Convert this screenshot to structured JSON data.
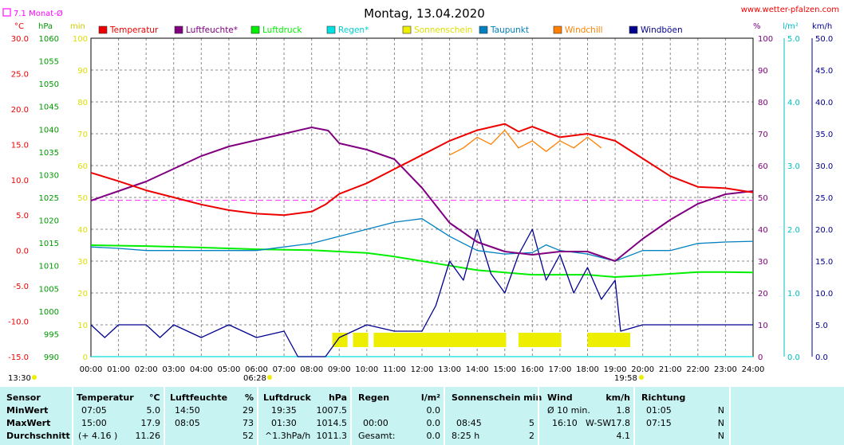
{
  "title": "Montag, 13.04.2020",
  "website": "www.wetter-pfalzen.com",
  "monthly_avg_label": "7.1 Monat-Ø",
  "units": {
    "temp": "°C",
    "pressure": "hPa",
    "sun": "min",
    "percent": "%",
    "rain": "l/m²",
    "wind": "km/h"
  },
  "sunrise": "06:28",
  "sunset": "19:58",
  "left_time": "13:30",
  "colors": {
    "temperature": "#ee0000",
    "humidity": "#800080",
    "pressure": "#00ee00",
    "rain": "#00e0e0",
    "sun": "#eeee00",
    "dewpoint": "#0080c0",
    "windchill": "#ff8000",
    "gusts": "#000090",
    "avg_line": "#ff40ff"
  },
  "chart_data": {
    "type": "line",
    "x_range": [
      "00:00",
      "24:00"
    ],
    "x_ticks": [
      "00:00",
      "01:00",
      "02:00",
      "03:00",
      "04:00",
      "05:00",
      "06:00",
      "07:00",
      "08:00",
      "09:00",
      "10:00",
      "11:00",
      "12:00",
      "13:00",
      "14:00",
      "15:00",
      "16:00",
      "17:00",
      "18:00",
      "19:00",
      "20:00",
      "21:00",
      "22:00",
      "23:00",
      "24:00"
    ],
    "axes": {
      "temperature": {
        "min": -15,
        "max": 30,
        "ticks": [
          "30.0",
          "25.0",
          "20.0",
          "15.0",
          "10.0",
          "5.0",
          "0.0",
          "-5.0",
          "-10.0",
          "-15.0"
        ]
      },
      "pressure": {
        "min": 990,
        "max": 1060,
        "ticks": [
          "1060",
          "1055",
          "1050",
          "1045",
          "1040",
          "1035",
          "1030",
          "1025",
          "1020",
          "1015",
          "1010",
          "1005",
          "1000",
          "995",
          "990"
        ]
      },
      "sunshine": {
        "min": 0,
        "max": 100,
        "ticks": [
          "100",
          "90",
          "80",
          "70",
          "60",
          "50",
          "40",
          "30",
          "20",
          "10",
          "0"
        ]
      },
      "humidity": {
        "min": 0,
        "max": 100,
        "ticks": [
          "100",
          "90",
          "80",
          "70",
          "60",
          "50",
          "40",
          "30",
          "20",
          "10",
          "0"
        ]
      },
      "rain": {
        "min": 0,
        "max": 5,
        "ticks": [
          "5.0",
          "4.0",
          "3.0",
          "2.0",
          "1.0",
          "0.0"
        ]
      },
      "wind": {
        "min": 0,
        "max": 50,
        "ticks": [
          "50.0",
          "45.0",
          "40.0",
          "35.0",
          "30.0",
          "25.0",
          "20.0",
          "15.0",
          "10.0",
          "5.0",
          "0.0"
        ]
      }
    },
    "legend": [
      "Temperatur",
      "Luftfeuchte*",
      "Luftdruck",
      "Regen*",
      "Sonnenschein",
      "Taupunkt",
      "Windchill",
      "Windböen"
    ],
    "monthly_avg_temp": 7.1,
    "series": [
      {
        "name": "Temperatur",
        "axis": "temperature",
        "x": [
          0,
          1,
          2,
          3,
          4,
          5,
          6,
          7,
          8,
          8.5,
          9,
          10,
          11,
          12,
          13,
          14,
          15,
          15.5,
          16,
          17,
          18,
          19,
          20,
          21,
          22,
          23,
          24
        ],
        "values": [
          11,
          9.8,
          8.5,
          7.5,
          6.5,
          5.7,
          5.2,
          5.0,
          5.5,
          6.5,
          8,
          9.5,
          11.5,
          13.5,
          15.5,
          17,
          17.9,
          16.8,
          17.5,
          16,
          16.5,
          15.5,
          13,
          10.5,
          9,
          8.8,
          8.2
        ]
      },
      {
        "name": "Luftfeuchte*",
        "axis": "humidity",
        "x": [
          0,
          1,
          2,
          3,
          4,
          5,
          6,
          7,
          7.5,
          8,
          8.6,
          9,
          10,
          11,
          12,
          13,
          14,
          15,
          16,
          17,
          18,
          19,
          20,
          21,
          22,
          23,
          24
        ],
        "values": [
          49,
          52,
          55,
          59,
          63,
          66,
          68,
          70,
          71,
          72,
          71,
          67,
          65,
          62,
          53,
          42,
          36,
          33,
          32,
          33,
          33,
          30,
          37,
          43,
          48,
          51,
          52
        ]
      },
      {
        "name": "Luftdruck",
        "axis": "pressure",
        "x": [
          0,
          2,
          4,
          6,
          8,
          10,
          11,
          12,
          13,
          14,
          15,
          16,
          17,
          18,
          19,
          20,
          21,
          22,
          23,
          24
        ],
        "values": [
          1014.5,
          1014.3,
          1014.0,
          1013.6,
          1013.4,
          1012.8,
          1012,
          1011,
          1010,
          1009,
          1008.5,
          1008,
          1008,
          1008,
          1007.5,
          1007.8,
          1008.2,
          1008.6,
          1008.6,
          1008.5
        ]
      },
      {
        "name": "Regen*",
        "axis": "rain",
        "x": [
          0,
          24
        ],
        "values": [
          0,
          0
        ]
      },
      {
        "name": "Taupunkt",
        "axis": "temperature",
        "x": [
          0,
          1,
          2,
          3,
          4,
          5,
          6,
          7,
          8,
          9,
          10,
          11,
          12,
          13,
          14,
          15,
          16,
          16.5,
          17,
          18,
          19,
          20,
          21,
          22,
          23,
          24
        ],
        "values": [
          0.5,
          0.3,
          0,
          0,
          0,
          0,
          0,
          0.5,
          1,
          2,
          3,
          4,
          4.5,
          2,
          0,
          -0.5,
          -0.3,
          0.8,
          0,
          -0.5,
          -1.5,
          0,
          0,
          1,
          1.2,
          1.3
        ]
      },
      {
        "name": "Windchill",
        "axis": "temperature",
        "x": [
          13,
          13.5,
          14,
          14.5,
          15,
          15.5,
          16,
          16.5,
          17,
          17.5,
          18,
          18.5
        ],
        "values": [
          13.5,
          14.5,
          16,
          15,
          17,
          14.5,
          15.5,
          14,
          15.5,
          14.5,
          16,
          14.5
        ]
      },
      {
        "name": "Windböen",
        "axis": "wind",
        "x": [
          0,
          0.5,
          1,
          2,
          2.5,
          3,
          4,
          5,
          6,
          7,
          7.5,
          8,
          8.5,
          9,
          10,
          11,
          12,
          12.5,
          13,
          13.5,
          14,
          14.5,
          15,
          15.5,
          16,
          16.5,
          17,
          17.5,
          18,
          18.5,
          19,
          19.2,
          20,
          21,
          22,
          23,
          24
        ],
        "values": [
          5,
          3,
          5,
          5,
          3,
          5,
          3,
          5,
          3,
          4,
          0,
          0,
          0,
          3,
          5,
          4,
          4,
          8,
          15,
          12,
          20,
          13,
          10,
          16,
          20,
          12,
          16,
          10,
          14,
          9,
          12,
          4,
          5,
          5,
          5,
          5,
          5
        ]
      },
      {
        "name": "Sonnenschein",
        "axis": "sunshine",
        "type": "bar",
        "x": [
          8.75,
          9.5,
          10.25,
          10.75,
          11.1,
          11.5,
          12,
          12.5,
          13,
          13.5,
          14,
          14.5,
          15.5,
          16,
          16.5,
          18,
          18.5,
          19
        ],
        "values": [
          5,
          5,
          5,
          5,
          5,
          5,
          5,
          5,
          5,
          5,
          5,
          5,
          5,
          5,
          5,
          5,
          5,
          5
        ]
      }
    ]
  },
  "table": {
    "row_labels": [
      "Sensor",
      "MinWert",
      "MaxWert",
      "Durchschnitt"
    ],
    "temperatur": {
      "header": "Temperatur",
      "unit": "°C",
      "min_time": "07:05",
      "min": "5.0",
      "max_time": "15:00",
      "max": "17.9",
      "avg_note": "(+ 4.16 )",
      "avg": "11.26"
    },
    "luftfeuchte": {
      "header": "Luftfeuchte",
      "unit": "%",
      "min_time": "14:50",
      "min": "29",
      "max_time": "08:05",
      "max": "73",
      "avg": "52"
    },
    "luftdruck": {
      "header": "Luftdruck",
      "unit": "hPa",
      "min_time": "19:35",
      "min": "1007.5",
      "max_time": "01:30",
      "max": "1014.5",
      "avg_note": "^1.3hPa/h",
      "avg": "1011.3"
    },
    "regen": {
      "header": "Regen",
      "unit": "l/m²",
      "min": "0.0",
      "max_time": "00:00",
      "max": "0.0",
      "avg_label": "Gesamt:",
      "avg": "0.0"
    },
    "sonne": {
      "header": "Sonnenschein min",
      "max_time": "08:45",
      "max": "5",
      "avg_label": "8:25 h",
      "avg": "2"
    },
    "wind": {
      "header": "Wind",
      "unit": "km/h",
      "min_label": "Ø 10 min.",
      "min": "1.8",
      "max_time": "16:10",
      "max_dir": "W-SW",
      "max": "17.8",
      "avg": "4.1"
    },
    "richtung": {
      "header": "Richtung",
      "min_time": "01:05",
      "min": "N",
      "max_time": "07:15",
      "max": "N",
      "avg": "N"
    }
  }
}
